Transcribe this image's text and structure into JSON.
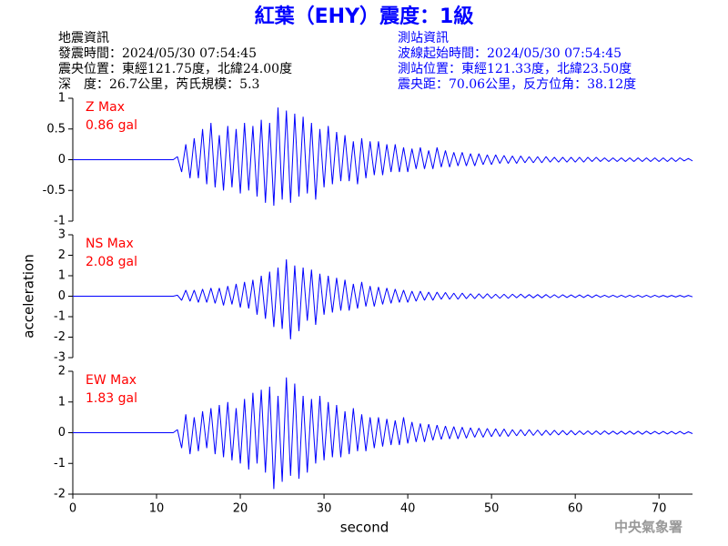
{
  "header": {
    "title": "紅葉（EHY）震度：1級",
    "left": {
      "title": "地震資訊",
      "lines": [
        "發震時間：2024/05/30 07:54:45",
        "震央位置：東經121.75度，北緯24.00度",
        "深　度：26.7公里，芮氏規模：5.3"
      ]
    },
    "right": {
      "title": "測站資訊",
      "lines": [
        "波線起始時間：2024/05/30 07:54:45",
        "測站位置：東經121.33度，北緯23.50度",
        "震央距：70.06公里，反方位角：38.12度"
      ]
    },
    "footer": "中央氣象署"
  },
  "chart_data": [
    {
      "type": "line",
      "label": "Z Max",
      "annotation": "0.86 gal",
      "annotation_color": "#ff0000",
      "color": "#0000ff",
      "xlim": [
        0,
        74
      ],
      "ylim": [
        -1,
        1
      ],
      "yticks": [
        -1,
        -0.5,
        0,
        0.5,
        1
      ],
      "x": [
        0,
        12,
        12.5,
        13,
        13.5,
        14,
        14.5,
        15,
        15.5,
        16,
        16.5,
        17,
        17.5,
        18,
        18.5,
        19,
        19.5,
        20,
        20.5,
        21,
        21.5,
        22,
        22.5,
        23,
        23.5,
        24,
        24.5,
        25,
        25.5,
        26,
        26.5,
        27,
        27.5,
        28,
        28.5,
        29,
        29.5,
        30,
        30.5,
        31,
        31.5,
        32,
        32.5,
        33,
        33.5,
        34,
        34.5,
        35,
        35.5,
        36,
        36.5,
        37,
        37.5,
        38,
        38.5,
        39,
        39.5,
        40,
        40.5,
        41,
        41.5,
        42,
        42.5,
        43,
        43.5,
        44,
        44.5,
        45,
        45.5,
        46,
        46.5,
        47,
        47.5,
        48,
        48.5,
        49,
        49.5,
        50,
        50.5,
        51,
        51.5,
        52,
        52.5,
        53,
        53.5,
        54,
        54.5,
        55,
        55.5,
        56,
        56.5,
        57,
        57.5,
        58,
        58.5,
        59,
        59.5,
        60,
        60.5,
        61,
        61.5,
        62,
        62.5,
        63,
        63.5,
        64,
        64.5,
        65,
        65.5,
        66,
        66.5,
        67,
        67.5,
        68,
        68.5,
        69,
        69.5,
        70,
        70.5,
        71,
        71.5,
        72,
        72.5,
        73,
        73.5,
        74
      ],
      "values": [
        0,
        0,
        0.05,
        -0.2,
        0.25,
        -0.3,
        0.35,
        -0.3,
        0.5,
        -0.4,
        0.6,
        -0.45,
        0.4,
        -0.5,
        0.55,
        -0.45,
        0.5,
        -0.55,
        0.6,
        -0.5,
        0.55,
        -0.6,
        0.65,
        -0.7,
        0.6,
        -0.75,
        0.85,
        -0.65,
        0.8,
        -0.7,
        0.75,
        -0.6,
        0.7,
        -0.55,
        0.6,
        -0.65,
        0.5,
        -0.45,
        0.55,
        -0.4,
        0.45,
        -0.35,
        0.4,
        -0.35,
        0.3,
        -0.4,
        0.35,
        -0.3,
        0.3,
        -0.25,
        0.3,
        -0.25,
        0.25,
        -0.2,
        0.25,
        -0.2,
        0.2,
        -0.2,
        0.18,
        -0.15,
        0.2,
        -0.15,
        0.15,
        -0.15,
        0.2,
        -0.12,
        0.15,
        -0.12,
        0.12,
        -0.1,
        0.12,
        -0.1,
        0.1,
        -0.1,
        0.1,
        -0.08,
        0.08,
        -0.08,
        0.08,
        -0.06,
        0.07,
        -0.06,
        0.06,
        -0.06,
        0.06,
        -0.05,
        0.05,
        -0.05,
        0.05,
        -0.05,
        0.05,
        -0.04,
        0.04,
        -0.04,
        0.04,
        -0.04,
        0.04,
        -0.04,
        0.04,
        -0.04,
        0.04,
        -0.03,
        0.04,
        -0.03,
        0.03,
        -0.03,
        0.03,
        -0.03,
        0.03,
        -0.03,
        0.03,
        -0.03,
        0.03,
        -0.03,
        0.03,
        -0.03,
        0.03,
        -0.03,
        0.03,
        -0.03,
        0.03,
        -0.03,
        0.03,
        -0.02,
        0.02,
        -0.02
      ]
    },
    {
      "type": "line",
      "label": "NS Max",
      "annotation": "2.08 gal",
      "annotation_color": "#ff0000",
      "color": "#0000ff",
      "ylabel": "acceleration",
      "xlim": [
        0,
        74
      ],
      "ylim": [
        -3,
        3
      ],
      "yticks": [
        -3,
        -2,
        -1,
        0,
        1,
        2,
        3
      ],
      "x": [
        0,
        12,
        12.5,
        13,
        13.5,
        14,
        14.5,
        15,
        15.5,
        16,
        16.5,
        17,
        17.5,
        18,
        18.5,
        19,
        19.5,
        20,
        20.5,
        21,
        21.5,
        22,
        22.5,
        23,
        23.5,
        24,
        24.5,
        25,
        25.5,
        26,
        26.5,
        27,
        27.5,
        28,
        28.5,
        29,
        29.5,
        30,
        30.5,
        31,
        31.5,
        32,
        32.5,
        33,
        33.5,
        34,
        34.5,
        35,
        35.5,
        36,
        36.5,
        37,
        37.5,
        38,
        38.5,
        39,
        39.5,
        40,
        40.5,
        41,
        41.5,
        42,
        42.5,
        43,
        43.5,
        44,
        44.5,
        45,
        45.5,
        46,
        46.5,
        47,
        47.5,
        48,
        48.5,
        49,
        49.5,
        50,
        50.5,
        51,
        51.5,
        52,
        52.5,
        53,
        53.5,
        54,
        54.5,
        55,
        55.5,
        56,
        56.5,
        57,
        57.5,
        58,
        58.5,
        59,
        59.5,
        60,
        60.5,
        61,
        61.5,
        62,
        62.5,
        63,
        63.5,
        64,
        64.5,
        65,
        65.5,
        66,
        66.5,
        67,
        67.5,
        68,
        68.5,
        69,
        69.5,
        70,
        70.5,
        71,
        71.5,
        72,
        72.5,
        73,
        73.5,
        74
      ],
      "values": [
        0,
        0,
        0.05,
        -0.2,
        0.3,
        -0.25,
        0.3,
        -0.3,
        0.35,
        -0.3,
        0.4,
        -0.35,
        0.4,
        -0.45,
        0.5,
        -0.4,
        0.6,
        -0.55,
        0.7,
        -0.6,
        0.8,
        -0.9,
        1.0,
        -1.1,
        1.2,
        -1.5,
        1.4,
        -1.6,
        1.8,
        -2.1,
        1.5,
        -1.7,
        1.4,
        -1.2,
        1.3,
        -1.4,
        1.1,
        -0.9,
        1.0,
        -0.8,
        0.9,
        -0.7,
        0.8,
        -0.7,
        0.6,
        -0.6,
        0.7,
        -0.5,
        0.5,
        -0.5,
        0.45,
        -0.4,
        0.4,
        -0.35,
        0.35,
        -0.3,
        0.3,
        -0.3,
        0.25,
        -0.25,
        0.25,
        -0.2,
        0.2,
        -0.2,
        0.2,
        -0.15,
        0.18,
        -0.15,
        0.15,
        -0.15,
        0.15,
        -0.12,
        0.12,
        -0.12,
        0.12,
        -0.1,
        0.12,
        -0.1,
        0.1,
        -0.1,
        0.1,
        -0.1,
        0.1,
        -0.08,
        0.1,
        -0.08,
        0.08,
        -0.08,
        0.08,
        -0.08,
        0.08,
        -0.07,
        0.07,
        -0.07,
        0.07,
        -0.06,
        0.06,
        -0.06,
        0.06,
        -0.06,
        0.06,
        -0.06,
        0.06,
        -0.05,
        0.05,
        -0.05,
        0.05,
        -0.05,
        0.05,
        -0.05,
        0.05,
        -0.05,
        0.05,
        -0.05,
        0.05,
        -0.05,
        0.05,
        -0.04,
        0.04,
        -0.04,
        0.04,
        -0.04,
        0.04,
        -0.04,
        0.04,
        -0.03
      ]
    },
    {
      "type": "line",
      "label": "EW Max",
      "annotation": "1.83 gal",
      "annotation_color": "#ff0000",
      "color": "#0000ff",
      "xlabel": "second",
      "xlim": [
        0,
        74
      ],
      "xticks": [
        0,
        10,
        20,
        30,
        40,
        50,
        60,
        70
      ],
      "ylim": [
        -2,
        2
      ],
      "yticks": [
        -2,
        -1,
        0,
        1,
        2
      ],
      "x": [
        0,
        12,
        12.5,
        13,
        13.5,
        14,
        14.5,
        15,
        15.5,
        16,
        16.5,
        17,
        17.5,
        18,
        18.5,
        19,
        19.5,
        20,
        20.5,
        21,
        21.5,
        22,
        22.5,
        23,
        23.5,
        24,
        24.5,
        25,
        25.5,
        26,
        26.5,
        27,
        27.5,
        28,
        28.5,
        29,
        29.5,
        30,
        30.5,
        31,
        31.5,
        32,
        32.5,
        33,
        33.5,
        34,
        34.5,
        35,
        35.5,
        36,
        36.5,
        37,
        37.5,
        38,
        38.5,
        39,
        39.5,
        40,
        40.5,
        41,
        41.5,
        42,
        42.5,
        43,
        43.5,
        44,
        44.5,
        45,
        45.5,
        46,
        46.5,
        47,
        47.5,
        48,
        48.5,
        49,
        49.5,
        50,
        50.5,
        51,
        51.5,
        52,
        52.5,
        53,
        53.5,
        54,
        54.5,
        55,
        55.5,
        56,
        56.5,
        57,
        57.5,
        58,
        58.5,
        59,
        59.5,
        60,
        60.5,
        61,
        61.5,
        62,
        62.5,
        63,
        63.5,
        64,
        64.5,
        65,
        65.5,
        66,
        66.5,
        67,
        67.5,
        68,
        68.5,
        69,
        69.5,
        70,
        70.5,
        71,
        71.5,
        72,
        72.5,
        73,
        73.5,
        74
      ],
      "values": [
        0,
        0,
        0.1,
        -0.5,
        0.6,
        -0.7,
        0.5,
        -0.6,
        0.7,
        -0.5,
        0.8,
        -0.7,
        0.9,
        -0.8,
        1.0,
        -0.9,
        0.8,
        -1.0,
        1.1,
        -1.2,
        1.3,
        -1.0,
        1.4,
        -1.3,
        1.5,
        -1.83,
        1.2,
        -1.6,
        1.8,
        -1.4,
        1.6,
        -1.5,
        1.2,
        -1.3,
        1.1,
        -1.0,
        1.2,
        -0.9,
        1.0,
        -0.8,
        0.9,
        -0.8,
        0.7,
        -0.7,
        0.8,
        -0.6,
        0.6,
        -0.6,
        0.5,
        -0.5,
        0.5,
        -0.45,
        0.45,
        -0.4,
        0.4,
        -0.4,
        0.5,
        -0.35,
        0.35,
        -0.3,
        0.3,
        -0.3,
        0.28,
        -0.25,
        0.25,
        -0.22,
        0.22,
        -0.2,
        0.2,
        -0.2,
        0.18,
        -0.18,
        0.16,
        -0.15,
        0.15,
        -0.15,
        0.14,
        -0.13,
        0.13,
        -0.12,
        0.12,
        -0.12,
        0.1,
        -0.1,
        0.1,
        -0.1,
        0.1,
        -0.09,
        0.09,
        -0.09,
        0.08,
        -0.08,
        0.08,
        -0.07,
        0.07,
        -0.07,
        0.07,
        -0.07,
        0.06,
        -0.06,
        0.06,
        -0.06,
        0.06,
        -0.06,
        0.06,
        -0.05,
        0.05,
        -0.05,
        0.05,
        -0.05,
        0.05,
        -0.05,
        0.05,
        -0.05,
        0.05,
        -0.04,
        0.04,
        -0.04,
        0.04,
        -0.04,
        0.04,
        -0.04,
        0.04,
        -0.04,
        0.03,
        -0.03
      ]
    }
  ]
}
